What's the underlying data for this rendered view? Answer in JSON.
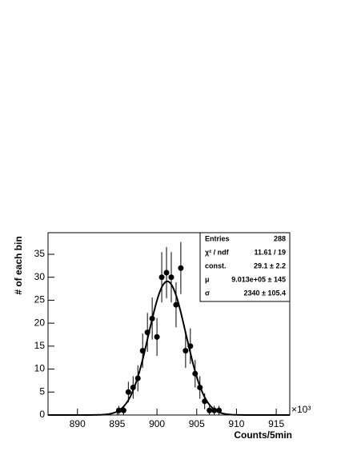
{
  "chart_data": {
    "type": "errorbar",
    "x_label": "Counts/5min",
    "y_label": "# of each bin",
    "x_multiplier": "×10³",
    "x": [
      895.2,
      895.8,
      896.4,
      897.0,
      897.6,
      898.2,
      898.8,
      899.4,
      900.0,
      900.6,
      901.2,
      901.8,
      902.4,
      903.0,
      903.6,
      904.2,
      904.8,
      905.4,
      906.0,
      906.6,
      907.2,
      907.8
    ],
    "values": [
      1,
      1,
      5,
      6,
      8,
      14,
      18,
      21,
      17,
      30,
      31,
      30,
      24,
      32,
      14,
      15,
      9,
      6,
      3,
      1,
      1,
      1
    ],
    "errors": [
      1,
      1,
      2.24,
      2.45,
      2.83,
      3.74,
      4.24,
      4.58,
      4.12,
      5.48,
      5.57,
      5.48,
      4.9,
      5.66,
      3.74,
      3.87,
      3,
      2.45,
      1.73,
      1,
      1,
      1
    ],
    "color": "#000000",
    "fit": {
      "const": 29.1,
      "mean": 901.3,
      "sigma": 2.34
    },
    "xlim": [
      886.3,
      916.7
    ],
    "xticks": [
      890,
      895,
      900,
      905,
      910,
      915
    ],
    "ylim": [
      0,
      39.7
    ],
    "yticks": [
      0,
      5,
      10,
      15,
      20,
      25,
      30,
      35
    ],
    "stats": [
      [
        "Entries",
        "288"
      ],
      [
        "χ² / ndf",
        "11.61 / 19"
      ],
      [
        "const.",
        "29.1 ± 2.2"
      ],
      [
        "μ",
        "9.013e+05 ± 145"
      ],
      [
        "σ",
        "2340 ± 105.4"
      ]
    ]
  }
}
